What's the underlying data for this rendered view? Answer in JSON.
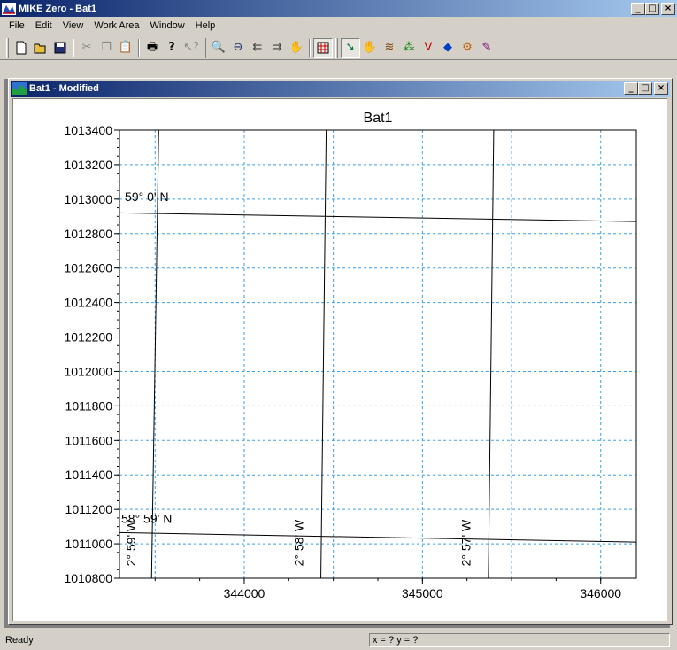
{
  "app": {
    "title": "MIKE Zero - Bat1",
    "window_buttons": [
      "_",
      "□",
      "×"
    ]
  },
  "menu": [
    "File",
    "Edit",
    "View",
    "Work Area",
    "Window",
    "Help"
  ],
  "toolbar": {
    "groups": [
      [
        "new-icon",
        "open-icon",
        "save-icon"
      ],
      [
        "cut-icon",
        "copy-icon",
        "paste-icon"
      ],
      [
        "print-icon",
        "help-icon",
        "context-help-icon"
      ],
      [
        "zoom-in-icon",
        "zoom-out-icon",
        "zoom-previous-icon",
        "zoom-next-icon",
        "pan-icon"
      ],
      [
        "grid-icon"
      ],
      [
        "select-icon",
        "hand-icon",
        "edit-points-icon",
        "add-points-icon",
        "draw-line-icon",
        "polygon-icon",
        "tools-icon",
        "brush-icon"
      ]
    ]
  },
  "child_window": {
    "title": "Bat1 - Modified",
    "window_buttons": [
      "_",
      "□",
      "×"
    ]
  },
  "chart_data": {
    "type": "line",
    "title": "Bat1",
    "xlim": [
      343300,
      346200
    ],
    "ylim": [
      1010800,
      1013400
    ],
    "x_ticks": [
      344000,
      345000,
      346000
    ],
    "y_ticks": [
      1010800,
      1011000,
      1011200,
      1011400,
      1011600,
      1011800,
      1012000,
      1012200,
      1012400,
      1012600,
      1012800,
      1013000,
      1013200,
      1013400
    ],
    "grid": true,
    "grid_x_minor": [
      343500,
      344000,
      344500,
      345000,
      345500,
      346000
    ],
    "series": [
      {
        "name": "59° 0' N",
        "points": [
          [
            343300,
            1012920
          ],
          [
            346200,
            1012870
          ]
        ]
      },
      {
        "name": "58° 59' N",
        "points": [
          [
            343300,
            1011065
          ],
          [
            346200,
            1011010
          ]
        ]
      },
      {
        "name": "2° 59' W",
        "points": [
          [
            343520,
            1013400
          ],
          [
            343480,
            1010800
          ]
        ]
      },
      {
        "name": "2° 58' W",
        "points": [
          [
            344460,
            1013400
          ],
          [
            344430,
            1010800
          ]
        ]
      },
      {
        "name": "2° 57' W",
        "points": [
          [
            345400,
            1013400
          ],
          [
            345370,
            1010800
          ]
        ]
      }
    ],
    "annotations": [
      {
        "text": "59° 0' N",
        "x": 343330,
        "y": 1012990,
        "rotate": 0
      },
      {
        "text": "58° 59' N",
        "x": 343310,
        "y": 1011120,
        "rotate": 0
      },
      {
        "text": "2° 59' W",
        "x": 343390,
        "y": 1010870,
        "rotate": -90
      },
      {
        "text": "2° 58' W",
        "x": 344330,
        "y": 1010870,
        "rotate": -90
      },
      {
        "text": "2° 57' W",
        "x": 345270,
        "y": 1010870,
        "rotate": -90
      }
    ]
  },
  "status": {
    "left": "Ready",
    "coords": "x = ?  y = ?"
  }
}
